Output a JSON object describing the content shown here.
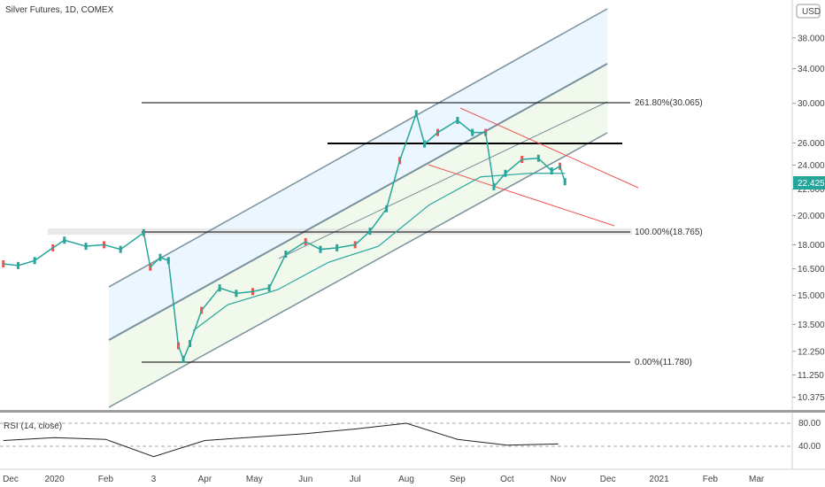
{
  "header": {
    "symbol_title": "Silver Futures, 1D, COMEX",
    "currency": "USD",
    "rsi_title": "RSI (14, close)"
  },
  "colors": {
    "up": "#26a69a",
    "channel_line": "#78909c",
    "channel_fill_top": "#e3f2fd",
    "channel_fill_bottom": "#edf7e9",
    "wedge": "#ef5350",
    "ma": "#26a69a",
    "last_price_bg": "#26a69a",
    "resistance": "#000000"
  },
  "chart_data": [
    {
      "type": "candlestick",
      "title": "Silver Futures, 1D, COMEX",
      "y_scale": "log",
      "y_ticks": [
        "38.000",
        "34.000",
        "30.000",
        "26.000",
        "24.000",
        "22.000",
        "20.000",
        "18.000",
        "16.500",
        "15.000",
        "13.500",
        "12.250",
        "11.250",
        "10.375"
      ],
      "x_ticks": [
        "Dec",
        "2020",
        "Feb",
        "3",
        "Apr",
        "May",
        "Jun",
        "Jul",
        "Aug",
        "Sep",
        "Oct",
        "Nov",
        "Dec",
        "2021",
        "Feb",
        "Mar"
      ],
      "last_price": "22.425",
      "fib_levels": [
        {
          "label": "261.80%(30.065)",
          "value": 30.065
        },
        {
          "label": "100.00%(18.765)",
          "value": 18.765
        },
        {
          "label": "0.00%(11.780)",
          "value": 11.78
        }
      ],
      "resistance_level": 26.0,
      "price_series": [
        [
          "2019-12-01",
          16.8
        ],
        [
          "2019-12-10",
          16.7
        ],
        [
          "2019-12-20",
          17.0
        ],
        [
          "2019-12-31",
          17.8
        ],
        [
          "2020-01-07",
          18.3
        ],
        [
          "2020-01-20",
          17.9
        ],
        [
          "2020-01-31",
          18.0
        ],
        [
          "2020-02-10",
          17.7
        ],
        [
          "2020-02-24",
          18.8
        ],
        [
          "2020-02-28",
          16.6
        ],
        [
          "2020-03-05",
          17.2
        ],
        [
          "2020-03-10",
          17.0
        ],
        [
          "2020-03-16",
          12.5
        ],
        [
          "2020-03-19",
          11.9
        ],
        [
          "2020-03-23",
          12.6
        ],
        [
          "2020-03-30",
          14.2
        ],
        [
          "2020-04-10",
          15.4
        ],
        [
          "2020-04-20",
          15.1
        ],
        [
          "2020-04-30",
          15.2
        ],
        [
          "2020-05-10",
          15.4
        ],
        [
          "2020-05-20",
          17.4
        ],
        [
          "2020-06-01",
          18.2
        ],
        [
          "2020-06-10",
          17.7
        ],
        [
          "2020-06-20",
          17.8
        ],
        [
          "2020-07-01",
          18.0
        ],
        [
          "2020-07-10",
          18.9
        ],
        [
          "2020-07-20",
          20.5
        ],
        [
          "2020-07-28",
          24.4
        ],
        [
          "2020-08-07",
          28.9
        ],
        [
          "2020-08-12",
          25.9
        ],
        [
          "2020-08-20",
          27.0
        ],
        [
          "2020-09-01",
          28.2
        ],
        [
          "2020-09-10",
          27.0
        ],
        [
          "2020-09-18",
          27.0
        ],
        [
          "2020-09-23",
          22.2
        ],
        [
          "2020-09-30",
          23.3
        ],
        [
          "2020-10-10",
          24.5
        ],
        [
          "2020-10-20",
          24.6
        ],
        [
          "2020-10-28",
          23.5
        ],
        [
          "2020-11-02",
          23.9
        ],
        [
          "2020-11-05",
          22.6
        ]
      ],
      "moving_average": [
        [
          "2020-03-25",
          13.2
        ],
        [
          "2020-04-15",
          14.5
        ],
        [
          "2020-05-15",
          15.3
        ],
        [
          "2020-06-15",
          16.9
        ],
        [
          "2020-07-15",
          17.9
        ],
        [
          "2020-08-15",
          20.8
        ],
        [
          "2020-09-15",
          23.0
        ],
        [
          "2020-10-15",
          23.3
        ],
        [
          "2020-11-05",
          23.3
        ]
      ]
    },
    {
      "type": "line",
      "title": "RSI (14, close)",
      "y_ticks": [
        "80.00",
        "40.00"
      ],
      "x": [
        "2019-12",
        "2020-01",
        "2020-02",
        "2020-03",
        "2020-04",
        "2020-05",
        "2020-06",
        "2020-07",
        "2020-08",
        "2020-09",
        "2020-10",
        "2020-11"
      ],
      "values": [
        50,
        55,
        52,
        22,
        50,
        56,
        62,
        70,
        80,
        52,
        42,
        44
      ]
    }
  ]
}
